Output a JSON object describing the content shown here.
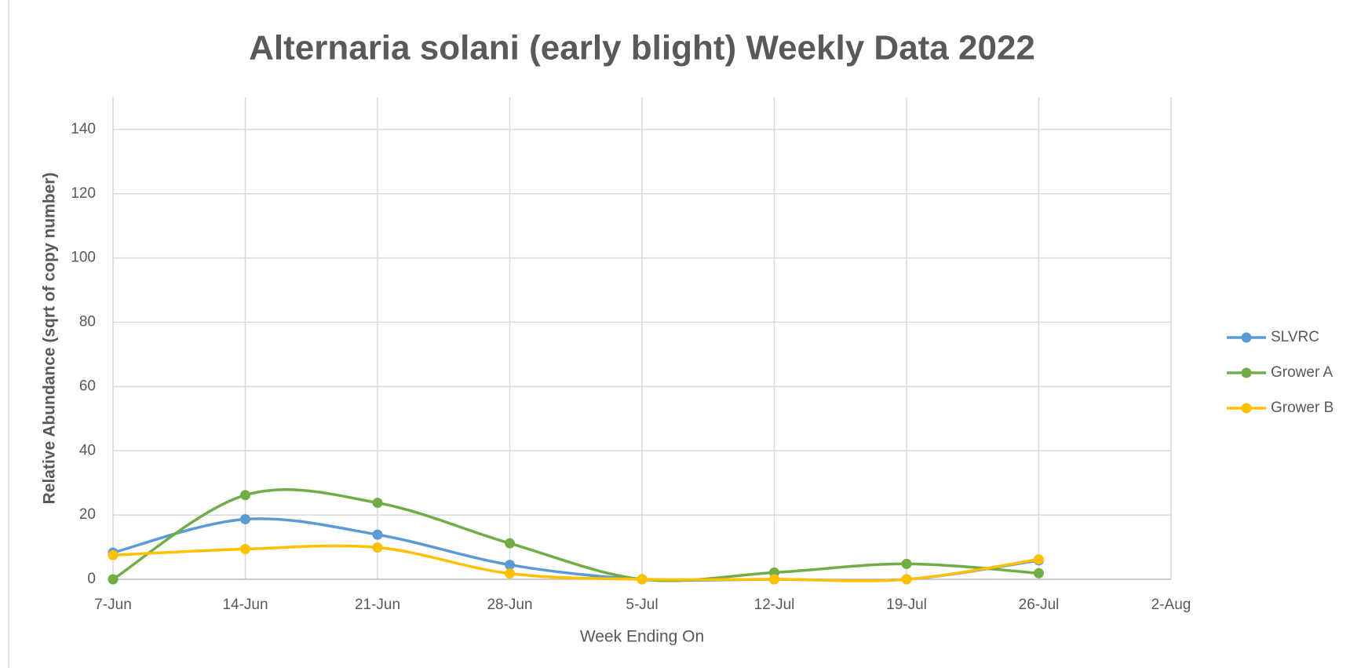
{
  "chart_data": {
    "type": "line",
    "title": "Alternaria solani (early blight) Weekly Data 2022",
    "x_label": "Week Ending On",
    "y_label": "Relative Abundance  (sqrt of copy number)",
    "categories": [
      "7-Jun",
      "14-Jun",
      "21-Jun",
      "28-Jun",
      "5-Jul",
      "12-Jul",
      "19-Jul",
      "26-Jul",
      "2-Aug"
    ],
    "series": [
      {
        "name": "SLVRC",
        "color": "#5b9bd5",
        "values": [
          8.3,
          18.7,
          13.9,
          4.5,
          0,
          0,
          0,
          5.9,
          null
        ]
      },
      {
        "name": "Grower A",
        "color": "#70ad47",
        "values": [
          0,
          26.2,
          23.8,
          11.2,
          0,
          2.1,
          4.8,
          1.9,
          null
        ]
      },
      {
        "name": "Grower B",
        "color": "#ffc000",
        "values": [
          7.5,
          9.4,
          9.9,
          1.8,
          0,
          0,
          0,
          6.2,
          null
        ]
      }
    ],
    "ylim": [
      0,
      150
    ],
    "yticks": [
      0,
      20,
      40,
      60,
      80,
      100,
      120,
      140
    ],
    "grid": true,
    "smooth": true,
    "legend": "right"
  }
}
